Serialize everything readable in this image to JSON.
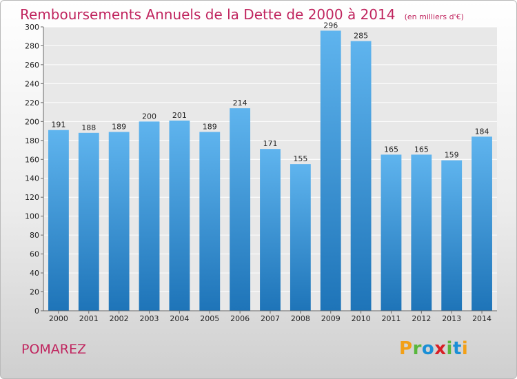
{
  "title": "Remboursements Annuels de la Dette de 2000 à 2014",
  "unit": "(en milliers d'€)",
  "commune": "POMAREZ",
  "logo": [
    "P",
    "r",
    "o",
    "x",
    "i",
    "t",
    "i"
  ],
  "chart_data": {
    "type": "bar",
    "categories": [
      "2000",
      "2001",
      "2002",
      "2003",
      "2004",
      "2005",
      "2006",
      "2007",
      "2008",
      "2009",
      "2010",
      "2011",
      "2012",
      "2013",
      "2014"
    ],
    "values": [
      191,
      188,
      189,
      200,
      201,
      189,
      214,
      171,
      155,
      296,
      285,
      165,
      165,
      159,
      184
    ],
    "ylim": [
      0,
      300
    ],
    "yticks": [
      0,
      20,
      40,
      60,
      80,
      100,
      120,
      140,
      160,
      180,
      200,
      220,
      240,
      260,
      280,
      300
    ],
    "grid": true,
    "colors": {
      "bar_light": "#5fb4ee",
      "bar_dark": "#1e74b8",
      "title": "#c0245e",
      "plot_bg": "#e8e8e8",
      "grid": "#ffffff"
    }
  }
}
